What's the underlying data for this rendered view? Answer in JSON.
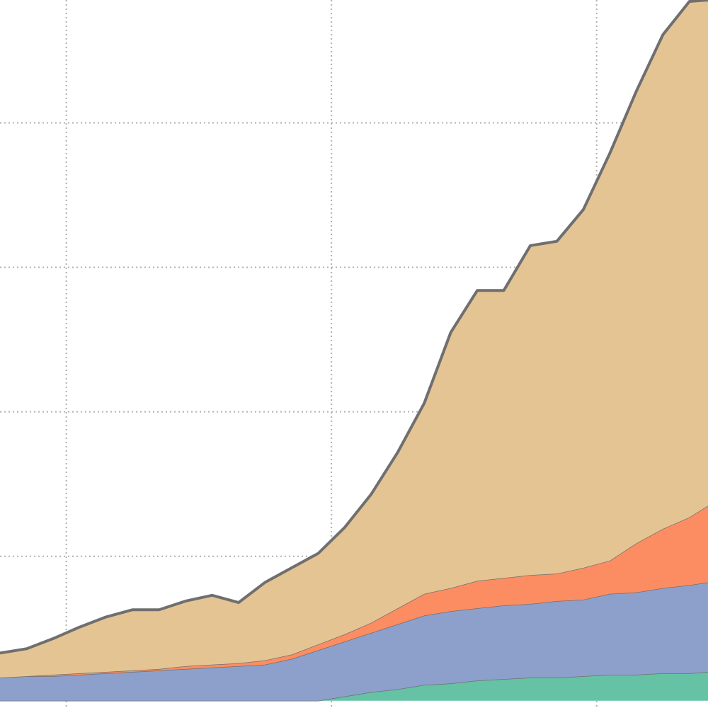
{
  "chart_data": {
    "type": "stacked_area",
    "x": [
      0.75,
      0.85,
      0.95,
      1.05,
      1.15,
      1.25,
      1.35,
      1.45,
      1.55,
      1.65,
      1.75,
      1.85,
      1.95,
      2.05,
      2.15,
      2.25,
      2.35,
      2.45,
      2.55,
      2.65,
      2.75,
      2.85,
      2.95,
      3.05,
      3.15,
      3.25,
      3.35,
      3.42
    ],
    "series": [
      {
        "color": "#66c2a5",
        "values": [
          0,
          0,
          0,
          0,
          0,
          0,
          0,
          0,
          0,
          0,
          0,
          0,
          0,
          0.03,
          0.06,
          0.08,
          0.11,
          0.12,
          0.14,
          0.15,
          0.16,
          0.16,
          0.17,
          0.18,
          0.18,
          0.19,
          0.19,
          0.2
        ]
      },
      {
        "color": "#8da0cb",
        "values": [
          0.16,
          0.17,
          0.17,
          0.18,
          0.19,
          0.2,
          0.21,
          0.22,
          0.23,
          0.24,
          0.25,
          0.29,
          0.35,
          0.38,
          0.41,
          0.45,
          0.48,
          0.5,
          0.5,
          0.51,
          0.51,
          0.53,
          0.53,
          0.56,
          0.57,
          0.59,
          0.61,
          0.62
        ]
      },
      {
        "color": "#fc8d62",
        "values": [
          0,
          0,
          0.01,
          0.01,
          0.01,
          0.01,
          0.01,
          0.02,
          0.02,
          0.02,
          0.03,
          0.03,
          0.04,
          0.05,
          0.07,
          0.11,
          0.15,
          0.16,
          0.19,
          0.19,
          0.2,
          0.19,
          0.22,
          0.23,
          0.34,
          0.41,
          0.47,
          0.53
        ]
      },
      {
        "color": "#e5c494",
        "values": [
          0.17,
          0.19,
          0.25,
          0.32,
          0.38,
          0.42,
          0.41,
          0.45,
          0.48,
          0.42,
          0.54,
          0.6,
          0.63,
          0.74,
          0.89,
          1.08,
          1.32,
          1.77,
          2.01,
          1.99,
          2.28,
          2.3,
          2.48,
          2.82,
          3.13,
          3.42,
          3.57,
          3.5
        ]
      }
    ],
    "xlim": [
      0.75,
      3.42
    ],
    "ylim": [
      -0.05,
      4.85
    ],
    "xticks": [
      1,
      2,
      3
    ],
    "yticks": [
      1,
      2,
      3,
      4
    ],
    "grid": true
  }
}
